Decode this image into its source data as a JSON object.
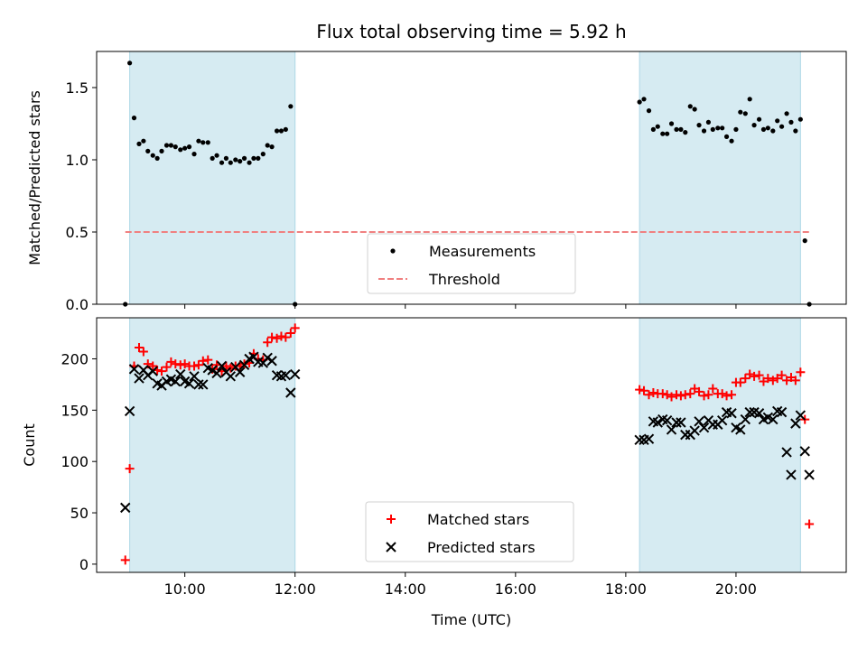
{
  "chart_data": [
    {
      "type": "scatter",
      "title": "Flux total observing time = 5.92 h",
      "xlabel": "",
      "ylabel": "Matched/Predicted stars",
      "xlim": [
        8.4,
        22.0
      ],
      "ylim": [
        0.0,
        1.75
      ],
      "yticks": [
        0.0,
        0.5,
        1.0,
        1.5
      ],
      "ytick_labels": [
        "0.0",
        "0.5",
        "1.0",
        "1.5"
      ],
      "observing_windows": [
        [
          9.0,
          12.0
        ],
        [
          18.25,
          21.17
        ]
      ],
      "threshold": {
        "name": "Threshold",
        "value": 0.5,
        "x": [
          8.92,
          21.33
        ],
        "color": "#f08080"
      },
      "legend": {
        "position": "bottom-center",
        "entries": [
          "Measurements",
          "Threshold"
        ]
      },
      "series": [
        {
          "name": "Measurements",
          "color": "#000000",
          "marker": "dot",
          "x": [
            8.92,
            9.0,
            9.08,
            9.17,
            9.25,
            9.33,
            9.42,
            9.5,
            9.58,
            9.67,
            9.75,
            9.83,
            9.92,
            10.0,
            10.08,
            10.17,
            10.25,
            10.33,
            10.42,
            10.5,
            10.58,
            10.67,
            10.75,
            10.83,
            10.92,
            11.0,
            11.08,
            11.17,
            11.25,
            11.33,
            11.42,
            11.5,
            11.58,
            11.67,
            11.75,
            11.83,
            11.92,
            12.0,
            18.25,
            18.33,
            18.42,
            18.5,
            18.58,
            18.67,
            18.75,
            18.83,
            18.92,
            19.0,
            19.08,
            19.17,
            19.25,
            19.33,
            19.42,
            19.5,
            19.58,
            19.67,
            19.75,
            19.83,
            19.92,
            20.0,
            20.08,
            20.17,
            20.25,
            20.33,
            20.42,
            20.5,
            20.58,
            20.67,
            20.75,
            20.83,
            20.92,
            21.0,
            21.08,
            21.17,
            21.25,
            21.33
          ],
          "y": [
            0.0,
            1.67,
            1.29,
            1.11,
            1.13,
            1.06,
            1.03,
            1.01,
            1.06,
            1.1,
            1.1,
            1.09,
            1.07,
            1.08,
            1.09,
            1.04,
            1.13,
            1.12,
            1.12,
            1.01,
            1.03,
            0.98,
            1.01,
            0.98,
            1.0,
            0.99,
            1.01,
            0.98,
            1.01,
            1.01,
            1.04,
            1.1,
            1.09,
            1.2,
            1.2,
            1.21,
            1.37,
            0.0,
            1.4,
            1.42,
            1.34,
            1.21,
            1.23,
            1.18,
            1.18,
            1.25,
            1.21,
            1.21,
            1.19,
            1.37,
            1.35,
            1.24,
            1.2,
            1.26,
            1.21,
            1.22,
            1.22,
            1.16,
            1.13,
            1.21,
            1.33,
            1.32,
            1.42,
            1.24,
            1.28,
            1.21,
            1.22,
            1.2,
            1.27,
            1.23,
            1.32,
            1.26,
            1.2,
            1.28,
            0.44,
            0.0
          ]
        }
      ]
    },
    {
      "type": "scatter",
      "title": "",
      "xlabel": "Time (UTC)",
      "ylabel": "Count",
      "xlim": [
        8.4,
        22.0
      ],
      "ylim": [
        -8,
        240
      ],
      "yticks": [
        0,
        50,
        100,
        150,
        200
      ],
      "ytick_labels": [
        "0",
        "50",
        "100",
        "150",
        "200"
      ],
      "xticks": [
        10,
        12,
        14,
        16,
        18,
        20
      ],
      "xtick_labels": [
        "10:00",
        "12:00",
        "14:00",
        "16:00",
        "18:00",
        "20:00"
      ],
      "observing_windows": [
        [
          9.0,
          12.0
        ],
        [
          18.25,
          21.17
        ]
      ],
      "legend": {
        "position": "bottom-center",
        "entries": [
          "Matched stars",
          "Predicted stars"
        ]
      },
      "series": [
        {
          "name": "Matched stars",
          "color": "#ff0000",
          "marker": "plus",
          "x": [
            8.92,
            9.0,
            9.08,
            9.17,
            9.25,
            9.33,
            9.42,
            9.5,
            9.58,
            9.67,
            9.75,
            9.83,
            9.92,
            10.0,
            10.08,
            10.17,
            10.25,
            10.33,
            10.42,
            10.5,
            10.58,
            10.67,
            10.75,
            10.83,
            10.92,
            11.0,
            11.08,
            11.17,
            11.25,
            11.33,
            11.42,
            11.5,
            11.58,
            11.67,
            11.75,
            11.83,
            11.92,
            12.0,
            18.25,
            18.33,
            18.42,
            18.5,
            18.58,
            18.67,
            18.75,
            18.83,
            18.92,
            19.0,
            19.08,
            19.17,
            19.25,
            19.33,
            19.42,
            19.5,
            19.58,
            19.67,
            19.75,
            19.83,
            19.92,
            20.0,
            20.08,
            20.17,
            20.25,
            20.33,
            20.42,
            20.5,
            20.58,
            20.67,
            20.75,
            20.83,
            20.92,
            21.0,
            21.08,
            21.17,
            21.25,
            21.33
          ],
          "y": [
            4,
            93,
            193,
            211,
            207,
            195,
            193,
            189,
            188,
            192,
            197,
            195,
            194,
            195,
            193,
            193,
            194,
            198,
            199,
            190,
            194,
            188,
            193,
            191,
            193,
            193,
            195,
            196,
            205,
            200,
            199,
            216,
            221,
            220,
            222,
            221,
            225,
            230,
            170,
            169,
            165,
            167,
            166,
            166,
            165,
            163,
            165,
            164,
            165,
            166,
            171,
            168,
            164,
            165,
            171,
            166,
            166,
            164,
            165,
            177,
            177,
            181,
            185,
            183,
            184,
            178,
            181,
            179,
            181,
            184,
            179,
            182,
            179,
            187,
            141,
            39
          ]
        },
        {
          "name": "Predicted stars",
          "color": "#000000",
          "marker": "x",
          "x": [
            8.92,
            9.0,
            9.08,
            9.17,
            9.25,
            9.33,
            9.42,
            9.5,
            9.58,
            9.67,
            9.75,
            9.83,
            9.92,
            10.0,
            10.08,
            10.17,
            10.25,
            10.33,
            10.42,
            10.5,
            10.58,
            10.67,
            10.75,
            10.83,
            10.92,
            11.0,
            11.08,
            11.17,
            11.25,
            11.33,
            11.42,
            11.5,
            11.58,
            11.67,
            11.75,
            11.83,
            11.92,
            12.0,
            18.25,
            18.33,
            18.42,
            18.5,
            18.58,
            18.67,
            18.75,
            18.83,
            18.92,
            19.0,
            19.08,
            19.17,
            19.25,
            19.33,
            19.42,
            19.5,
            19.58,
            19.67,
            19.75,
            19.83,
            19.92,
            20.0,
            20.08,
            20.17,
            20.25,
            20.33,
            20.42,
            20.5,
            20.58,
            20.67,
            20.75,
            20.83,
            20.92,
            21.0,
            21.08,
            21.17,
            21.25,
            21.33
          ],
          "y": [
            55,
            149,
            190,
            181,
            189,
            184,
            188,
            176,
            174,
            178,
            180,
            178,
            185,
            178,
            176,
            183,
            175,
            175,
            191,
            189,
            186,
            193,
            187,
            183,
            192,
            187,
            194,
            200,
            202,
            197,
            196,
            201,
            198,
            184,
            183,
            184,
            167,
            185,
            121,
            121,
            122,
            139,
            138,
            141,
            140,
            131,
            138,
            138,
            126,
            126,
            130,
            139,
            133,
            140,
            136,
            136,
            140,
            148,
            147,
            133,
            131,
            141,
            148,
            148,
            147,
            141,
            143,
            141,
            149,
            148,
            109,
            87,
            137,
            145,
            110,
            87
          ]
        }
      ]
    }
  ]
}
